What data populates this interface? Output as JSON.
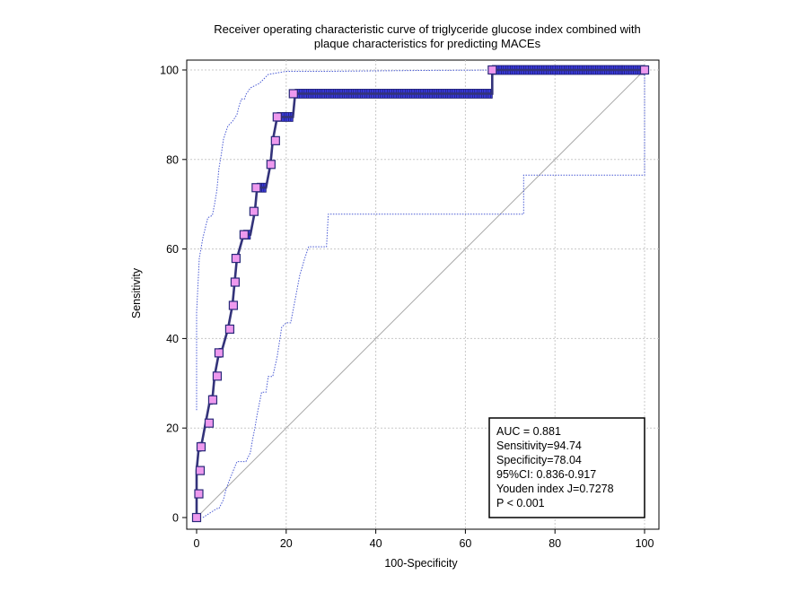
{
  "chart_data": {
    "type": "line",
    "title": [
      "Receiver operating characteristic curve of triglyceride glucose index combined with",
      "plaque characteristics for predicting MACEs"
    ],
    "xlabel": "100-Specificity",
    "ylabel": "Sensitivity",
    "xlim": [
      0,
      100
    ],
    "ylim": [
      0,
      100
    ],
    "xticks": [
      "0",
      "20",
      "40",
      "60",
      "80",
      "100"
    ],
    "yticks": [
      "0",
      "20",
      "40",
      "60",
      "80",
      "100"
    ],
    "grid": true,
    "colors": {
      "roc_line": "#33337a",
      "marker_fill": "#ee99ee",
      "tick_marker_fill": "#3b3bdd",
      "ci_line": "#4a5bd4",
      "diagonal": "#aaaaaa",
      "grid": "#c8c8c8"
    },
    "series": [
      {
        "role": "roc",
        "x": [
          0,
          0,
          0,
          0.5,
          1,
          2,
          3,
          3.5,
          4,
          5,
          5.5,
          7,
          8,
          8.5,
          9,
          9,
          10.5,
          12,
          13,
          13.5,
          15.5,
          16.5,
          17,
          18,
          18,
          21.5,
          22,
          22,
          66,
          66,
          95,
          100
        ],
        "y": [
          0,
          5.3,
          10.5,
          15.8,
          15.8,
          21.1,
          26.3,
          26.3,
          31.6,
          36.8,
          36.8,
          42.1,
          47.4,
          52.6,
          57.9,
          57.9,
          63.2,
          63.2,
          68.4,
          73.7,
          73.7,
          78.9,
          84.2,
          89.5,
          89.5,
          89.5,
          94.7,
          94.7,
          94.7,
          100,
          100,
          100
        ]
      },
      {
        "role": "criterion_markers",
        "x": [
          0,
          0.5,
          0.8,
          1,
          2.8,
          3.6,
          4.6,
          5,
          7.4,
          8.2,
          8.6,
          8.8,
          10.6,
          12.8,
          13.3,
          16.6,
          17.6,
          18,
          21.6,
          66,
          100
        ],
        "y": [
          0,
          5.3,
          10.5,
          15.8,
          21.1,
          26.3,
          31.6,
          36.8,
          42.1,
          47.4,
          52.6,
          57.9,
          63.2,
          68.4,
          73.7,
          78.9,
          84.2,
          89.5,
          94.7,
          100,
          100
        ]
      },
      {
        "role": "ci_upper",
        "x": [
          0,
          0,
          0.6,
          1.4,
          2.5,
          3.5,
          4,
          4.5,
          5,
          5.5,
          6,
          7,
          8,
          9,
          9.5,
          10,
          10.7,
          11,
          12,
          13,
          14,
          15,
          16,
          20,
          30,
          50,
          70,
          90,
          100
        ],
        "y": [
          24,
          45.8,
          58,
          62.5,
          67,
          67.5,
          70,
          73,
          78,
          81,
          84.5,
          87.5,
          88.5,
          90,
          92,
          93.5,
          93.5,
          94.5,
          96,
          96.5,
          97,
          98,
          99,
          99.7,
          99.7,
          99.9,
          100,
          100,
          100
        ]
      },
      {
        "role": "ci_lower",
        "x": [
          1.4,
          4.5,
          5,
          6,
          6.5,
          7,
          8,
          9,
          10,
          11,
          12,
          12.5,
          13,
          13.5,
          14,
          14.5,
          15.5,
          16,
          17,
          18,
          19,
          20,
          21,
          23,
          24,
          25,
          26,
          27,
          29,
          29.4,
          35,
          50,
          73,
          73,
          100,
          100
        ],
        "y": [
          0,
          2,
          2,
          4,
          6,
          7.5,
          10,
          12.5,
          12.5,
          12.5,
          14.5,
          17.5,
          20,
          23,
          25.5,
          28,
          28,
          31.5,
          31.5,
          36,
          42.5,
          43.5,
          43.5,
          54,
          57.5,
          60.5,
          60.5,
          60.5,
          60.5,
          67.8,
          67.8,
          67.8,
          67.8,
          76.5,
          76.5,
          100
        ]
      },
      {
        "role": "reference_diagonal",
        "x": [
          0,
          100
        ],
        "y": [
          0,
          100
        ]
      }
    ],
    "annotation": {
      "lines": [
        "AUC = 0.881",
        "Sensitivity=94.74",
        "Specificity=78.04",
        "95%CI: 0.836-0.917",
        "Youden index J=0.7278",
        "P < 0.001"
      ],
      "auc": 0.881,
      "sensitivity": 94.74,
      "specificity": 78.04,
      "ci": [
        0.836,
        0.917
      ],
      "youden_j": 0.7278,
      "p": "< 0.001"
    }
  }
}
